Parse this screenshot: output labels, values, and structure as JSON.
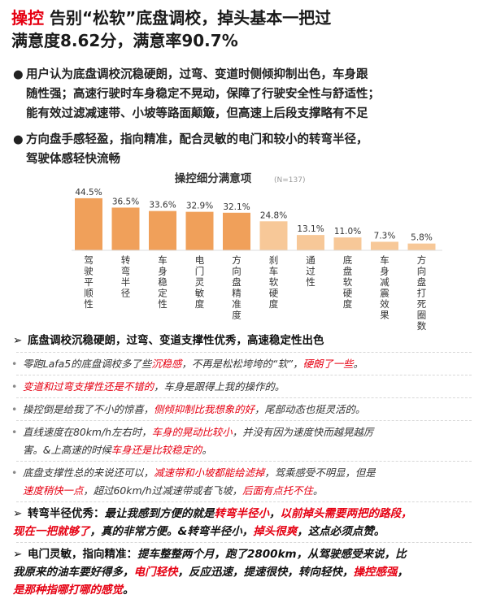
{
  "header": {
    "line1_hl": "操控",
    "line1_rest": " 告别“松软”底盘调校，掉头基本一把过",
    "line2": "满意度8.62分，满意率90.7%"
  },
  "bullets": [
    {
      "line1": "用户认为底盘调校沉稳硬朗，过弯、变道时侧倾抑制出色，车身跟",
      "line2": "随性强；高速行驶时车身稳定不晃动，保障了行驶安全性与舒适性；",
      "line3": "能有效过滤减速带、小坡等路面颠簸，但高速上后段支撑略有不足"
    },
    {
      "line1": "方向盘手感轻盈，指向精准，配合灵敏的电门和较小的转弯半径，",
      "line2": "驾驶体感轻快流畅"
    }
  ],
  "bullet_mark": "●",
  "chart_data": {
    "type": "bar",
    "title": "操控细分满意项",
    "subtitle": "(N=137)",
    "categories": [
      "驾驶平顺性",
      "转弯半径",
      "车身稳定性",
      "电门灵敏度",
      "方向盘精准度",
      "刹车软硬度",
      "通过性",
      "底盘软硬度",
      "车身减震效果",
      "方向盘打死圈数"
    ],
    "values": [
      44.5,
      36.5,
      33.6,
      32.9,
      32.1,
      24.8,
      13.1,
      11.0,
      7.3,
      5.8
    ],
    "value_labels": [
      "44.5%",
      "36.5%",
      "33.6%",
      "32.9%",
      "32.1%",
      "24.8%",
      "13.1%",
      "11.0%",
      "7.3%",
      "5.8%"
    ],
    "colors": [
      "#f0a05a",
      "#f0a05a",
      "#f0a05a",
      "#f0a05a",
      "#f0a05a",
      "#f7c898",
      "#f7c898",
      "#f7c898",
      "#f7c898",
      "#f7c898"
    ],
    "ylim": [
      0,
      50
    ]
  },
  "comments": {
    "s1_title": "底盘调校沉稳硬朗，过弯、变道支撑性优秀，高速稳定性出色",
    "c1": {
      "a": "零跑Lafa5的底盘调校多了些",
      "b": "沉稳感",
      "c": "，不再是松松垮垮的“软”，",
      "d": "硬朗了一些",
      "e": "。"
    },
    "c2": {
      "a": "变道和过弯支撑性还是不错的",
      "b": "，车身是跟得上我的操作的。"
    },
    "c3": {
      "a": "操控倒是给我了不小的惊喜，",
      "b": "侧倾抑制比我想象的好",
      "c": "，尾部动态也挺灵活的。"
    },
    "c4": {
      "a": "直线速度在80km/h左右时，",
      "b": "车身的晃动比较小",
      "c": "，并没有因为速度快而越晃越厉",
      "d": "害。&上高速的时候",
      "e": "车身还是比较稳定的",
      "f": "。"
    },
    "c5": {
      "a": "底盘支撑性总的来说还可以，",
      "b": "减速带和小坡都能给滤掉",
      "c": "，驾乘感受不明显，但是",
      "d": "速度稍快一点",
      "e": "，超过60km/h过减速带或者飞坡，",
      "f": "后面有点托不住",
      "g": "。"
    },
    "s2": {
      "title": "转弯半径优秀：",
      "a": "最让我感到方便的就是",
      "b": "转弯半径小",
      "c": "，",
      "d": "以前掉头需要两把的路段，",
      "e": "现在一把就够了",
      "f": "，真的非常方便。&转弯半径小，",
      "g": "掉头很爽",
      "h": "，这点必须点赞。"
    },
    "s3": {
      "title": "电门灵敏，指向精准：",
      "a": "提车整整两个月，跑了2800km，从驾驶感受来说，比",
      "b": "我原来的油车要好得多，",
      "c": "电门轻快",
      "d": "，反应迅速，提速很快，转向轻快，",
      "e": "操控感强",
      "f": "，",
      "g": "是那种指哪打哪的感觉",
      "h": "。"
    },
    "mark_head": "➢",
    "mark_item": "•"
  }
}
